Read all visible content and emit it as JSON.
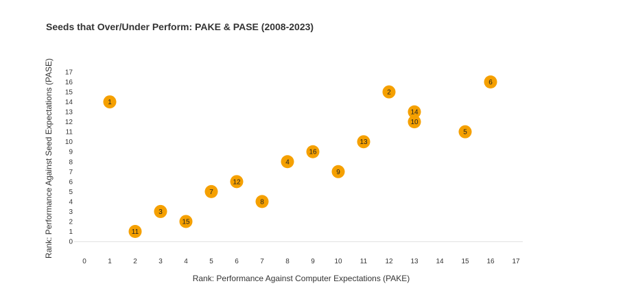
{
  "chart_data": {
    "type": "scatter",
    "title": "Seeds that Over/Under Perform: PAKE & PASE (2008-2023)",
    "xlabel": "Rank: Performance Against Computer Expectations (PAKE)",
    "ylabel": "Rank: Performance Against Seed Expectations (PASE)",
    "xlim": [
      0,
      17
    ],
    "ylim": [
      0,
      17
    ],
    "x_ticks": [
      0,
      1,
      2,
      3,
      4,
      5,
      6,
      7,
      8,
      9,
      10,
      11,
      12,
      13,
      14,
      15,
      16,
      17
    ],
    "y_ticks": [
      0,
      1,
      2,
      3,
      4,
      5,
      6,
      7,
      8,
      9,
      10,
      11,
      12,
      13,
      14,
      15,
      16,
      17
    ],
    "grid": false,
    "legend": "none",
    "marker_color": "#F5A000",
    "points": [
      {
        "label": "1",
        "x": 1,
        "y": 14
      },
      {
        "label": "11",
        "x": 2,
        "y": 1
      },
      {
        "label": "3",
        "x": 3,
        "y": 3
      },
      {
        "label": "15",
        "x": 4,
        "y": 2
      },
      {
        "label": "7",
        "x": 5,
        "y": 5
      },
      {
        "label": "12",
        "x": 6,
        "y": 6
      },
      {
        "label": "8",
        "x": 7,
        "y": 4
      },
      {
        "label": "4",
        "x": 8,
        "y": 8
      },
      {
        "label": "16",
        "x": 9,
        "y": 9
      },
      {
        "label": "9",
        "x": 10,
        "y": 7
      },
      {
        "label": "13",
        "x": 11,
        "y": 10
      },
      {
        "label": "2",
        "x": 12,
        "y": 15
      },
      {
        "label": "14",
        "x": 13,
        "y": 13
      },
      {
        "label": "10",
        "x": 13,
        "y": 12
      },
      {
        "label": "5",
        "x": 15,
        "y": 11
      },
      {
        "label": "6",
        "x": 16,
        "y": 16
      }
    ]
  }
}
